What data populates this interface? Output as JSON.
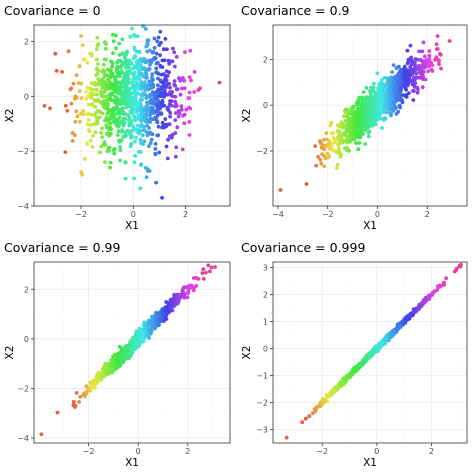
{
  "chart_data": [
    {
      "type": "scatter",
      "title": "Covariance = 0",
      "covariance": 0,
      "xlabel": "X1",
      "ylabel": "X2",
      "xlim": [
        -3.8,
        3.7
      ],
      "ylim": [
        -4.0,
        2.6
      ],
      "xticks": [
        -2,
        0,
        2
      ],
      "yticks": [
        -4,
        -2,
        0,
        2
      ],
      "n_points": 1000,
      "color_by": "X1",
      "outliers": [
        [
          -3.4,
          -0.35
        ],
        [
          3.3,
          0.5
        ],
        [
          1.1,
          -3.7
        ],
        [
          -2.0,
          2.2
        ]
      ]
    },
    {
      "type": "scatter",
      "title": "Covariance = 0.9",
      "covariance": 0.9,
      "xlabel": "X1",
      "ylabel": "X2",
      "xlim": [
        -4.2,
        3.6
      ],
      "ylim": [
        -4.4,
        3.5
      ],
      "xticks": [
        -4,
        -2,
        0,
        2
      ],
      "yticks": [
        -2,
        0,
        2
      ],
      "n_points": 1000,
      "color_by": "X1",
      "outliers": [
        [
          -3.9,
          -3.7
        ],
        [
          2.9,
          2.8
        ]
      ]
    },
    {
      "type": "scatter",
      "title": "Covariance = 0.99",
      "covariance": 0.99,
      "xlabel": "X1",
      "ylabel": "X2",
      "xlim": [
        -4.2,
        3.7
      ],
      "ylim": [
        -4.2,
        3.1
      ],
      "xticks": [
        -2,
        0,
        2
      ],
      "yticks": [
        -4,
        -2,
        0,
        2
      ],
      "n_points": 1000,
      "color_by": "X1",
      "outliers": [
        [
          -3.9,
          -3.85
        ],
        [
          3.1,
          2.9
        ]
      ]
    },
    {
      "type": "scatter",
      "title": "Covariance = 0.999",
      "covariance": 0.999,
      "xlabel": "X1",
      "ylabel": "X2",
      "xlim": [
        -3.8,
        3.3
      ],
      "ylim": [
        -3.5,
        3.2
      ],
      "xticks": [
        -2,
        0,
        2
      ],
      "yticks": [
        -3,
        -2,
        -1,
        0,
        1,
        2,
        3
      ],
      "n_points": 1000,
      "color_by": "X1",
      "outliers": [
        [
          -3.3,
          -3.3
        ],
        [
          2.85,
          2.85
        ]
      ]
    }
  ]
}
